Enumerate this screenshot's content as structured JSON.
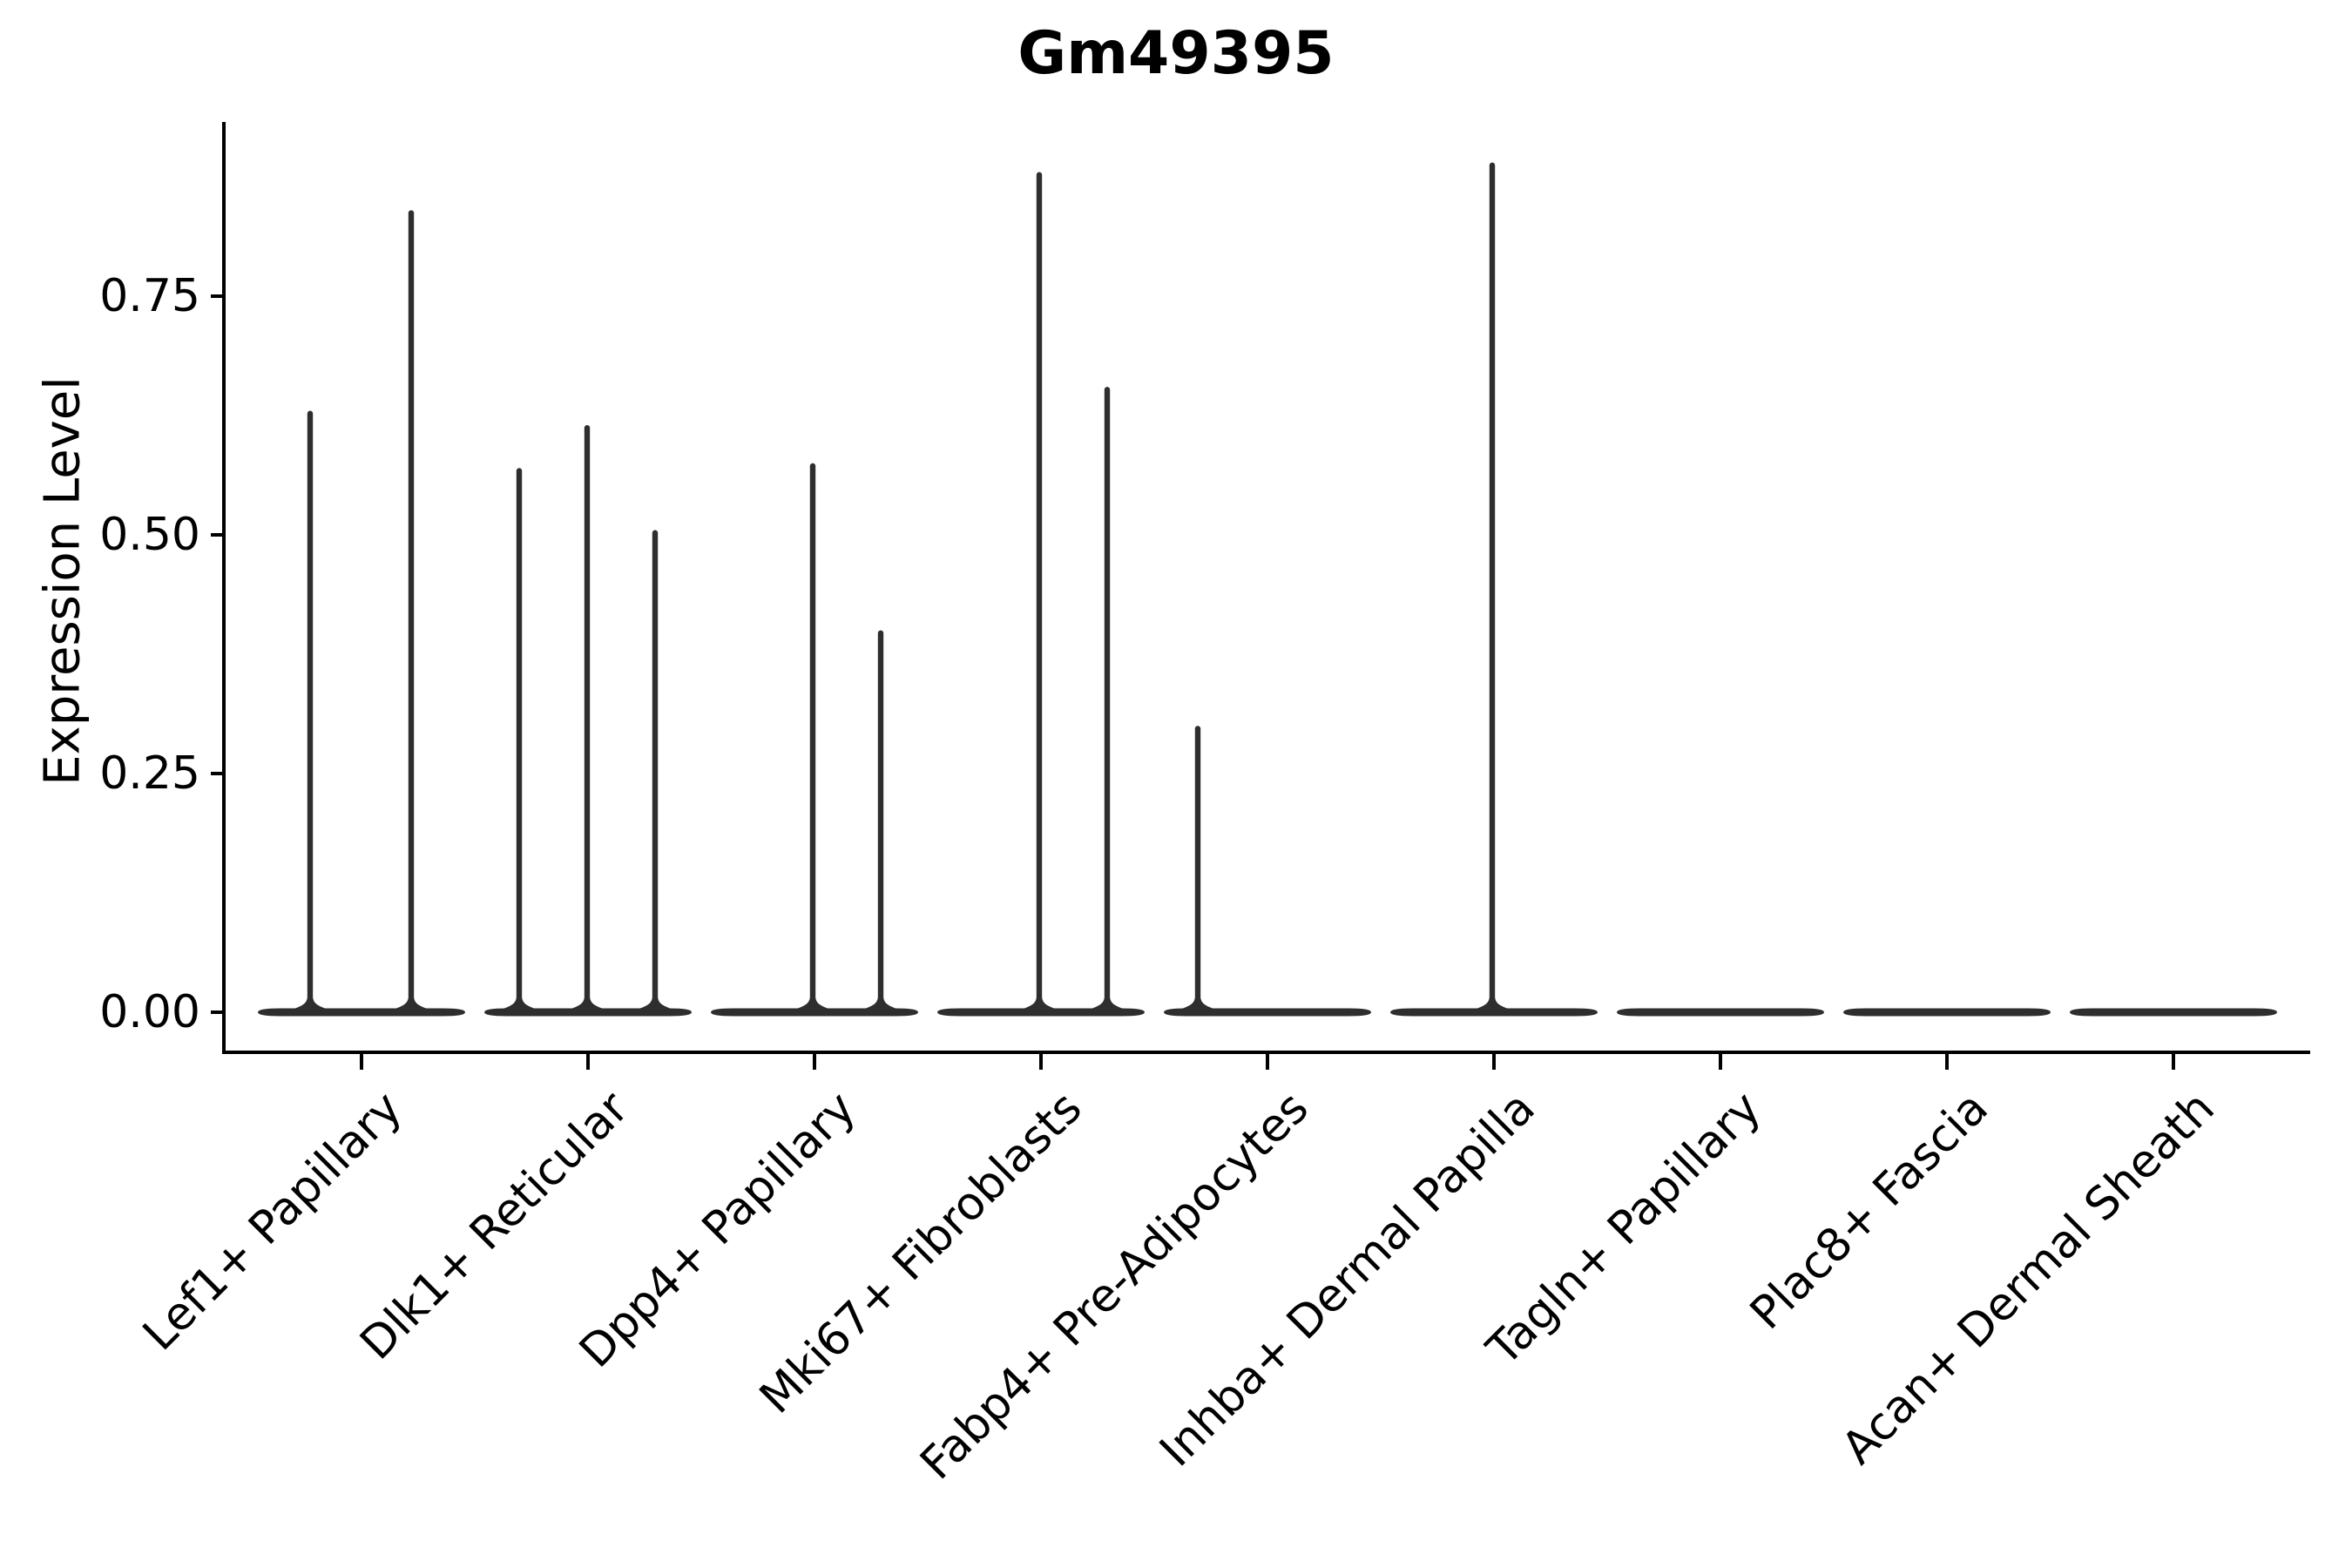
{
  "figure": {
    "background": "#ffffff"
  },
  "chart_data": {
    "type": "violin",
    "title": "Gm49395",
    "xlabel": "",
    "ylabel": "Expression Level",
    "ylim": [
      0,
      0.93
    ],
    "yticks": [
      0,
      0.25,
      0.5,
      0.75
    ],
    "ytick_labels": [
      "0.00",
      "0.25",
      "0.50",
      "0.75"
    ],
    "grid": false,
    "legend": null,
    "categories": [
      "Lef1+ Papillary",
      "Dlk1+ Reticular",
      "Dpp4+ Papillary",
      "Mki67+ Fibroblasts",
      "Fabp4+ Pre-Adipocytes",
      "Inhba+ Dermal Papilla",
      "Tagln+ Papillary",
      "Plac8+ Fascia",
      "Acan+ Dermal Sheath"
    ],
    "series": [
      {
        "category": "Lef1+ Papillary",
        "baseline_at_zero": true,
        "violins": [
          {
            "dx": -59,
            "max": 0.63
          },
          {
            "dx": 57,
            "max": 0.84
          }
        ]
      },
      {
        "category": "Dlk1+ Reticular",
        "baseline_at_zero": true,
        "violins": [
          {
            "dx": -79,
            "max": 0.57
          },
          {
            "dx": -1,
            "max": 0.615
          },
          {
            "dx": 77,
            "max": 0.505
          }
        ]
      },
      {
        "category": "Dpp4+ Papillary",
        "baseline_at_zero": true,
        "violins": [
          {
            "dx": -2,
            "max": 0.575
          },
          {
            "dx": 76,
            "max": 0.4
          }
        ]
      },
      {
        "category": "Mki67+ Fibroblasts",
        "baseline_at_zero": true,
        "violins": [
          {
            "dx": -2,
            "max": 0.88
          },
          {
            "dx": 76,
            "max": 0.655
          }
        ]
      },
      {
        "category": "Fabp4+ Pre-Adipocytes",
        "baseline_at_zero": true,
        "violins": [
          {
            "dx": -80,
            "max": 0.3
          }
        ]
      },
      {
        "category": "Inhba+ Dermal Papilla",
        "baseline_at_zero": true,
        "violins": [
          {
            "dx": -2,
            "max": 0.89
          }
        ]
      },
      {
        "category": "Tagln+ Papillary",
        "baseline_at_zero": true,
        "violins": []
      },
      {
        "category": "Plac8+ Fascia",
        "baseline_at_zero": true,
        "violins": []
      },
      {
        "category": "Acan+ Dermal Sheath",
        "baseline_at_zero": true,
        "violins": []
      }
    ],
    "colors": {
      "violin": "#2e2e2e",
      "axis": "#000000",
      "text": "#000000",
      "background": "#ffffff"
    }
  }
}
